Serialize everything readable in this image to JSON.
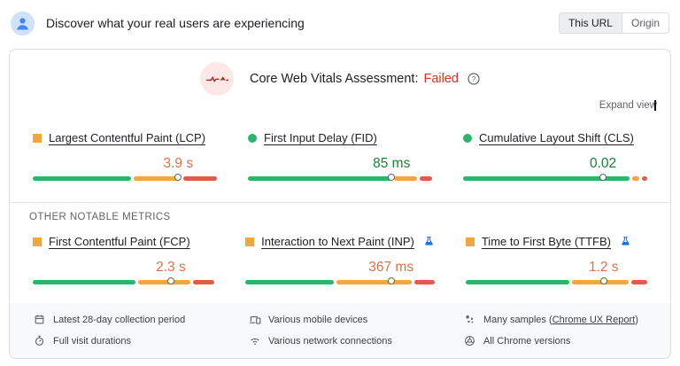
{
  "header": {
    "title": "Discover what your real users are experiencing",
    "toggle": {
      "this_url": "This URL",
      "origin": "Origin"
    }
  },
  "assessment": {
    "title": "Core Web Vitals Assessment:",
    "status": "Failed",
    "expand_label": "Expand view"
  },
  "sections": {
    "other_metrics_label": "OTHER NOTABLE METRICS"
  },
  "core_metrics": [
    {
      "label": "Largest Contentful Paint (LCP)",
      "value": "3.9 s",
      "status": "needs-improvement",
      "bullet": "square-orange",
      "experimental": false,
      "bar": {
        "good": 55,
        "avg": 26,
        "poor": 19,
        "marker": 79
      }
    },
    {
      "label": "First Input Delay (FID)",
      "value": "85 ms",
      "status": "good",
      "bullet": "dot-green",
      "experimental": false,
      "bar": {
        "good": 80,
        "avg": 13,
        "poor": 7,
        "marker": 78
      }
    },
    {
      "label": "Cumulative Layout Shift (CLS)",
      "value": "0.02",
      "status": "good",
      "bullet": "dot-green",
      "experimental": false,
      "bar": {
        "good": 93,
        "avg": 4,
        "poor": 3,
        "marker": 76
      }
    }
  ],
  "other_metrics": [
    {
      "label": "First Contentful Paint (FCP)",
      "value": "2.3 s",
      "status": "needs-improvement",
      "bullet": "square-orange",
      "experimental": false,
      "bar": {
        "good": 58,
        "avg": 30,
        "poor": 12,
        "marker": 76
      }
    },
    {
      "label": "Interaction to Next Paint (INP)",
      "value": "367 ms",
      "status": "needs-improvement",
      "bullet": "square-orange",
      "experimental": true,
      "bar": {
        "good": 48,
        "avg": 41,
        "poor": 11,
        "marker": 77
      }
    },
    {
      "label": "Time to First Byte (TTFB)",
      "value": "1.2 s",
      "status": "needs-improvement",
      "bullet": "square-orange",
      "experimental": true,
      "bar": {
        "good": 59,
        "avg": 32,
        "poor": 9,
        "marker": 76
      }
    }
  ],
  "footer": {
    "items": [
      {
        "icon": "calendar-icon",
        "text": "Latest 28-day collection period"
      },
      {
        "icon": "stopwatch-icon",
        "text": "Full visit durations"
      },
      {
        "icon": "devices-icon",
        "text": "Various mobile devices"
      },
      {
        "icon": "wifi-icon",
        "text": "Various network connections"
      },
      {
        "icon": "samples-icon",
        "text_prefix": "Many samples (",
        "link": "Chrome UX Report",
        "text_suffix": ")"
      },
      {
        "icon": "chrome-icon",
        "text": "All Chrome versions"
      }
    ]
  },
  "colors": {
    "bar_good": "#29b56a",
    "bar_average": "#f0a73e",
    "bar_poor": "#e05a4e",
    "good_text": "#188038",
    "needs_improvement_text": "#d5744a",
    "failed_red": "#d93025",
    "experiment_blue": "#1a73e8"
  }
}
